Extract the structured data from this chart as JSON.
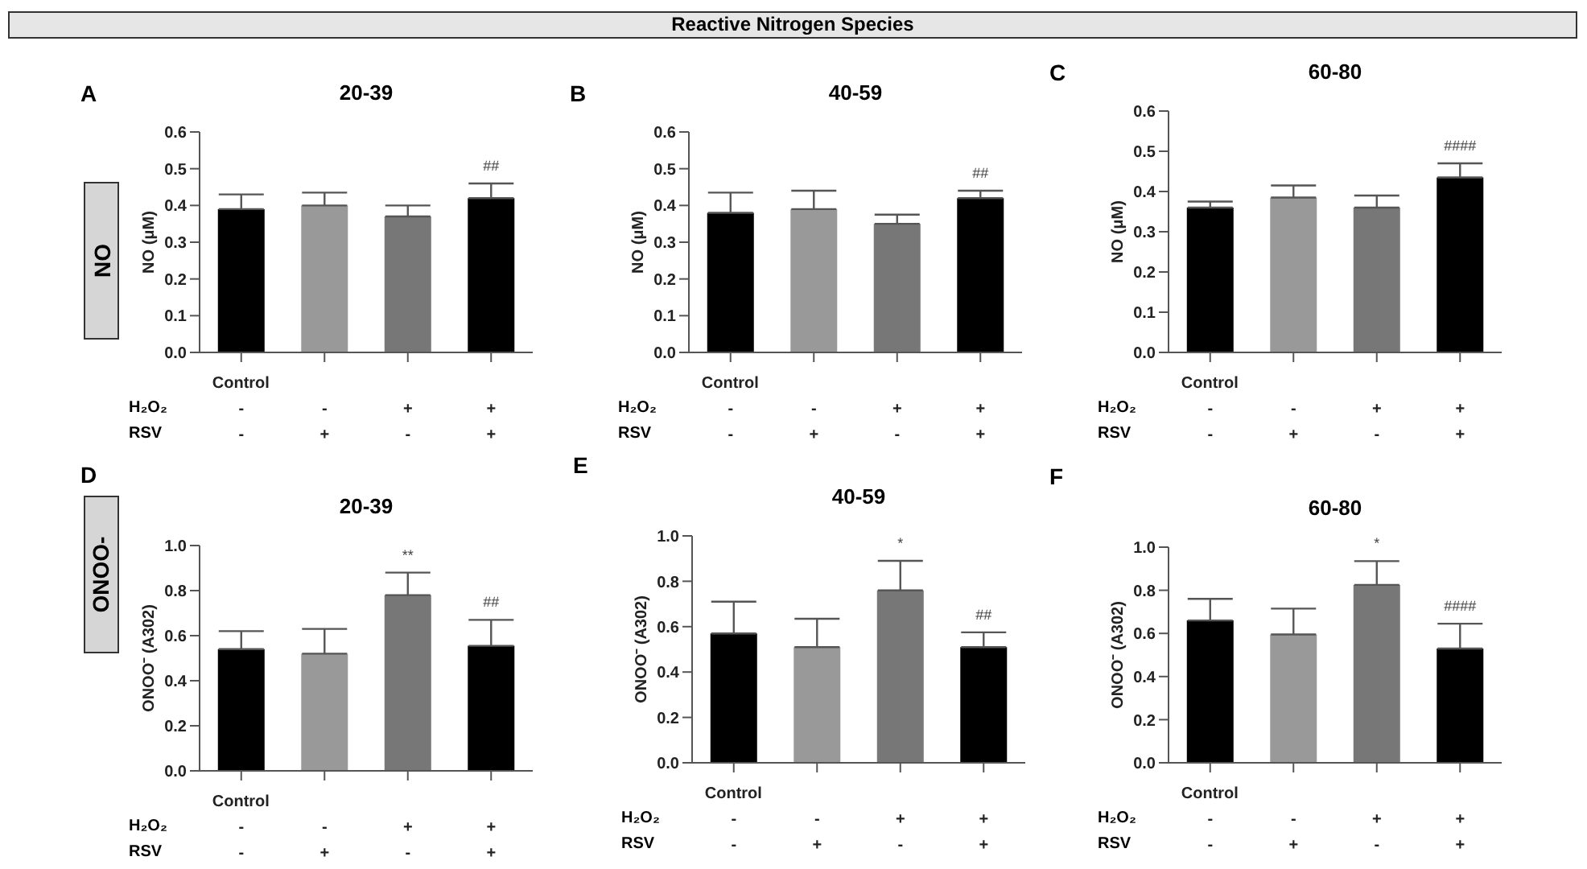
{
  "chart_data": [
    {
      "type": "bar",
      "title": "20-39",
      "ylabel": "NO (μM)",
      "categories": [
        "Control\n-\n-",
        "-\n+",
        "+\n-",
        "+\n+"
      ],
      "values": [
        0.39,
        0.4,
        0.37,
        0.42
      ],
      "colors": [
        "#000000",
        "#999999",
        "#777777",
        "#000000"
      ],
      "errors": [
        [
          0.39,
          0.43
        ],
        [
          0.4,
          0.435
        ],
        [
          0.37,
          0.4
        ],
        [
          0.42,
          0.46
        ]
      ],
      "ylim": [
        0,
        0.6
      ],
      "yticks": [
        {
          "value": 0,
          "label": "0.0"
        },
        {
          "value": 0.1,
          "label": "0.1"
        },
        {
          "value": 0.2,
          "label": "0.2"
        },
        {
          "value": 0.3,
          "label": "0.3"
        },
        {
          "value": 0.4,
          "label": "0.4"
        },
        {
          "value": 0.5,
          "label": "0.5"
        },
        {
          "value": 0.6,
          "label": "0.6"
        }
      ],
      "value_labels": [
        null,
        null,
        null,
        "##"
      ],
      "annotations": [
        "A",
        "H₂O₂",
        "RSV",
        "NO",
        "Reactive Nitrogen Species"
      ]
    },
    {
      "type": "bar",
      "title": "40-59",
      "ylabel": "NO (μM)",
      "categories": [
        "Control\n-\n-",
        "-\n+",
        "+\n-",
        "+\n+"
      ],
      "values": [
        0.38,
        0.39,
        0.35,
        0.42
      ],
      "colors": [
        "#000000",
        "#999999",
        "#777777",
        "#000000"
      ],
      "errors": [
        [
          0.38,
          0.435
        ],
        [
          0.39,
          0.44
        ],
        [
          0.35,
          0.375
        ],
        [
          0.42,
          0.44
        ]
      ],
      "ylim": [
        0,
        0.6
      ],
      "yticks": [
        {
          "value": 0,
          "label": "0.0"
        },
        {
          "value": 0.1,
          "label": "0.1"
        },
        {
          "value": 0.2,
          "label": "0.2"
        },
        {
          "value": 0.3,
          "label": "0.3"
        },
        {
          "value": 0.4,
          "label": "0.4"
        },
        {
          "value": 0.5,
          "label": "0.5"
        },
        {
          "value": 0.6,
          "label": "0.6"
        }
      ],
      "value_labels": [
        null,
        null,
        null,
        "##"
      ],
      "annotations": [
        "B",
        "H₂O₂",
        "RSV"
      ]
    },
    {
      "type": "bar",
      "title": "60-80",
      "ylabel": "NO (μM)",
      "categories": [
        "Control\n-\n-",
        "-\n+",
        "+\n-",
        "+\n+"
      ],
      "values": [
        0.36,
        0.385,
        0.36,
        0.435
      ],
      "colors": [
        "#000000",
        "#999999",
        "#777777",
        "#000000"
      ],
      "errors": [
        [
          0.36,
          0.375
        ],
        [
          0.385,
          0.415
        ],
        [
          0.36,
          0.39
        ],
        [
          0.435,
          0.47
        ]
      ],
      "ylim": [
        0,
        0.6
      ],
      "yticks": [
        {
          "value": 0,
          "label": "0.0"
        },
        {
          "value": 0.1,
          "label": "0.1"
        },
        {
          "value": 0.2,
          "label": "0.2"
        },
        {
          "value": 0.3,
          "label": "0.3"
        },
        {
          "value": 0.4,
          "label": "0.4"
        },
        {
          "value": 0.5,
          "label": "0.5"
        },
        {
          "value": 0.6,
          "label": "0.6"
        }
      ],
      "value_labels": [
        null,
        null,
        null,
        "####"
      ],
      "annotations": [
        "C",
        "H₂O₂",
        "RSV"
      ]
    },
    {
      "type": "bar",
      "title": "20-39",
      "ylabel": "ONOO⁻ (A302)",
      "categories": [
        "Control\n-\n-",
        "-\n+",
        "+\n-",
        "+\n+"
      ],
      "values": [
        0.54,
        0.52,
        0.78,
        0.555
      ],
      "colors": [
        "#000000",
        "#999999",
        "#777777",
        "#000000"
      ],
      "errors": [
        [
          0.54,
          0.62
        ],
        [
          0.52,
          0.63
        ],
        [
          0.78,
          0.88
        ],
        [
          0.555,
          0.67
        ]
      ],
      "ylim": [
        0,
        1
      ],
      "yticks": [
        {
          "value": 0,
          "label": "0.0"
        },
        {
          "value": 0.2,
          "label": "0.2"
        },
        {
          "value": 0.4,
          "label": "0.4"
        },
        {
          "value": 0.6,
          "label": "0.6"
        },
        {
          "value": 0.8,
          "label": "0.8"
        },
        {
          "value": 1,
          "label": "1.0"
        }
      ],
      "value_labels": [
        null,
        null,
        "**",
        "##"
      ],
      "annotations": [
        "D",
        "H₂O₂",
        "RSV",
        "ONOO-"
      ]
    },
    {
      "type": "bar",
      "title": "40-59",
      "ylabel": "ONOO⁻ (A302)",
      "categories": [
        "Control\n-\n-",
        "-\n+",
        "+\n-",
        "+\n+"
      ],
      "values": [
        0.57,
        0.51,
        0.76,
        0.51
      ],
      "colors": [
        "#000000",
        "#999999",
        "#777777",
        "#000000"
      ],
      "errors": [
        [
          0.57,
          0.71
        ],
        [
          0.51,
          0.635
        ],
        [
          0.76,
          0.89
        ],
        [
          0.51,
          0.575
        ]
      ],
      "ylim": [
        0,
        1
      ],
      "yticks": [
        {
          "value": 0,
          "label": "0.0"
        },
        {
          "value": 0.2,
          "label": "0.2"
        },
        {
          "value": 0.4,
          "label": "0.4"
        },
        {
          "value": 0.6,
          "label": "0.6"
        },
        {
          "value": 0.8,
          "label": "0.8"
        },
        {
          "value": 1,
          "label": "1.0"
        }
      ],
      "value_labels": [
        null,
        null,
        "*",
        "##"
      ],
      "annotations": [
        "E",
        "H₂O₂",
        "RSV"
      ]
    },
    {
      "type": "bar",
      "title": "60-80",
      "ylabel": "ONOO⁻ (A302)",
      "categories": [
        "Control\n-\n-",
        "-\n+",
        "+\n-",
        "+\n+"
      ],
      "values": [
        0.66,
        0.595,
        0.825,
        0.53
      ],
      "colors": [
        "#000000",
        "#999999",
        "#777777",
        "#000000"
      ],
      "errors": [
        [
          0.66,
          0.76
        ],
        [
          0.595,
          0.715
        ],
        [
          0.825,
          0.935
        ],
        [
          0.53,
          0.645
        ]
      ],
      "ylim": [
        0,
        1
      ],
      "yticks": [
        {
          "value": 0,
          "label": "0.0"
        },
        {
          "value": 0.2,
          "label": "0.2"
        },
        {
          "value": 0.4,
          "label": "0.4"
        },
        {
          "value": 0.6,
          "label": "0.6"
        },
        {
          "value": 0.8,
          "label": "0.8"
        },
        {
          "value": 1,
          "label": "1.0"
        }
      ],
      "value_labels": [
        null,
        null,
        "*",
        "####"
      ],
      "annotations": [
        "F",
        "H₂O₂",
        "RSV"
      ]
    }
  ]
}
